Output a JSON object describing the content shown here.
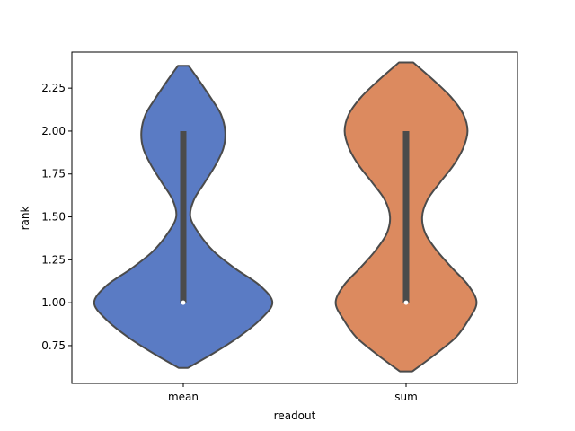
{
  "chart_data": {
    "type": "violin",
    "title": "",
    "xlabel": "readout",
    "ylabel": "rank",
    "categories": [
      "mean",
      "sum"
    ],
    "ylim": [
      0.53,
      2.46
    ],
    "yticks": [
      0.75,
      1.0,
      1.25,
      1.5,
      1.75,
      2.0,
      2.25
    ],
    "ytick_labels": [
      "0.75",
      "1.00",
      "1.25",
      "1.50",
      "1.75",
      "2.00",
      "2.25"
    ],
    "grid": false,
    "colors": [
      "#5a7bc4",
      "#dc8a5f"
    ],
    "edge_color": "#4b4b4b",
    "violins": [
      {
        "category": "mean",
        "ymin": 0.62,
        "ymax": 2.38,
        "median": 1.0,
        "q1": 1.0,
        "q3": 2.0,
        "profile": [
          [
            0.62,
            0.05
          ],
          [
            0.7,
            0.32
          ],
          [
            0.8,
            0.62
          ],
          [
            0.9,
            0.86
          ],
          [
            1.0,
            1.0
          ],
          [
            1.1,
            0.86
          ],
          [
            1.2,
            0.58
          ],
          [
            1.3,
            0.34
          ],
          [
            1.4,
            0.18
          ],
          [
            1.5,
            0.08
          ],
          [
            1.6,
            0.12
          ],
          [
            1.7,
            0.24
          ],
          [
            1.8,
            0.36
          ],
          [
            1.9,
            0.45
          ],
          [
            2.0,
            0.47
          ],
          [
            2.1,
            0.42
          ],
          [
            2.2,
            0.3
          ],
          [
            2.3,
            0.17
          ],
          [
            2.38,
            0.06
          ]
        ]
      },
      {
        "category": "sum",
        "ymin": 0.6,
        "ymax": 2.4,
        "median": 1.0,
        "q1": 1.0,
        "q3": 2.0,
        "profile": [
          [
            0.6,
            0.07
          ],
          [
            0.7,
            0.33
          ],
          [
            0.8,
            0.56
          ],
          [
            0.9,
            0.7
          ],
          [
            1.0,
            0.79
          ],
          [
            1.1,
            0.7
          ],
          [
            1.2,
            0.52
          ],
          [
            1.3,
            0.35
          ],
          [
            1.4,
            0.22
          ],
          [
            1.5,
            0.18
          ],
          [
            1.6,
            0.24
          ],
          [
            1.7,
            0.38
          ],
          [
            1.8,
            0.53
          ],
          [
            1.9,
            0.64
          ],
          [
            2.0,
            0.69
          ],
          [
            2.1,
            0.64
          ],
          [
            2.2,
            0.5
          ],
          [
            2.3,
            0.3
          ],
          [
            2.4,
            0.08
          ]
        ]
      }
    ]
  }
}
